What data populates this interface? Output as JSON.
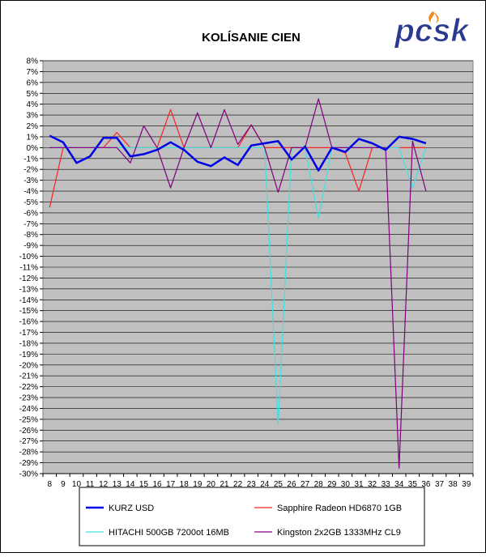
{
  "logo": {
    "text": "pcsk",
    "color": "#2b3a8f",
    "accent": "#f08a1c"
  },
  "chart_data": {
    "type": "line",
    "title": "KOLÍSANIE CIEN",
    "xlabel": "",
    "ylabel": "",
    "x": [
      8,
      9,
      10,
      11,
      12,
      13,
      14,
      15,
      16,
      17,
      18,
      19,
      20,
      21,
      22,
      23,
      24,
      25,
      26,
      27,
      28,
      29,
      30,
      31,
      32,
      33,
      34,
      35,
      36,
      37,
      38,
      39
    ],
    "ylim": [
      -30,
      8
    ],
    "y_unit": "%",
    "grid": true,
    "legend_position": "bottom",
    "plot_background": "#c0c0c0",
    "series": [
      {
        "name": "KURZ USD",
        "color": "#0000e6",
        "line_width": "thick",
        "points": [
          [
            8,
            1.1
          ],
          [
            9,
            0.5
          ],
          [
            10,
            -1.4
          ],
          [
            11,
            -0.8
          ],
          [
            12,
            0.9
          ],
          [
            13,
            0.9
          ],
          [
            14,
            -0.8
          ],
          [
            15,
            -0.6
          ],
          [
            16,
            -0.2
          ],
          [
            17,
            0.5
          ],
          [
            18,
            -0.2
          ],
          [
            19,
            -1.3
          ],
          [
            20,
            -1.7
          ],
          [
            21,
            -0.9
          ],
          [
            22,
            -1.6
          ],
          [
            23,
            0.2
          ],
          [
            24,
            0.4
          ],
          [
            25,
            0.6
          ],
          [
            26,
            -1.1
          ],
          [
            27,
            0.1
          ],
          [
            28,
            -2.1
          ],
          [
            29,
            0.0
          ],
          [
            30,
            -0.4
          ],
          [
            31,
            0.8
          ],
          [
            32,
            0.4
          ],
          [
            33,
            -0.2
          ],
          [
            34,
            1.0
          ],
          [
            35,
            0.8
          ],
          [
            36,
            0.4
          ]
        ]
      },
      {
        "name": "Sapphire Radeon HD6870 1GB",
        "color": "#ff2020",
        "line_width": "thin",
        "points": [
          [
            8,
            -5.5
          ],
          [
            9,
            0
          ],
          [
            10,
            0
          ],
          [
            11,
            0
          ],
          [
            12,
            0
          ],
          [
            13,
            1.4
          ],
          [
            14,
            0
          ],
          [
            15,
            0
          ],
          [
            16,
            0
          ],
          [
            17,
            3.5
          ],
          [
            18,
            0
          ],
          [
            19,
            0
          ],
          [
            20,
            0
          ],
          [
            21,
            0
          ],
          [
            22,
            0
          ],
          [
            23,
            2.1
          ],
          [
            24,
            0
          ],
          [
            25,
            0
          ],
          [
            26,
            0
          ],
          [
            27,
            0
          ],
          [
            28,
            0
          ],
          [
            29,
            0
          ],
          [
            30,
            -0.5
          ],
          [
            31,
            -4.0
          ],
          [
            32,
            0
          ],
          [
            33,
            0
          ],
          [
            34,
            0
          ],
          [
            35,
            0
          ],
          [
            36,
            0
          ]
        ]
      },
      {
        "name": "HITACHI 500GB 7200ot 16MB",
        "color": "#40e0e0",
        "line_width": "thin",
        "points": [
          [
            8,
            0
          ],
          [
            9,
            0
          ],
          [
            10,
            0
          ],
          [
            11,
            0
          ],
          [
            12,
            0
          ],
          [
            13,
            0
          ],
          [
            14,
            0
          ],
          [
            15,
            0
          ],
          [
            16,
            0
          ],
          [
            17,
            0
          ],
          [
            18,
            0
          ],
          [
            19,
            0
          ],
          [
            20,
            0
          ],
          [
            21,
            0
          ],
          [
            22,
            0
          ],
          [
            23,
            0
          ],
          [
            24,
            0
          ],
          [
            25,
            -25.5
          ],
          [
            26,
            0
          ],
          [
            27,
            0
          ],
          [
            28,
            -6.5
          ],
          [
            29,
            0
          ],
          [
            30,
            0
          ],
          [
            31,
            0
          ],
          [
            32,
            0
          ],
          [
            33,
            0
          ],
          [
            34,
            0
          ],
          [
            35,
            -3.7
          ],
          [
            36,
            0
          ]
        ]
      },
      {
        "name": "Kingston 2x2GB 1333MHz CL9",
        "color": "#800080",
        "line_width": "thin",
        "points": [
          [
            8,
            0
          ],
          [
            9,
            0
          ],
          [
            10,
            0
          ],
          [
            11,
            0
          ],
          [
            12,
            0
          ],
          [
            13,
            0
          ],
          [
            14,
            -1.4
          ],
          [
            15,
            2.0
          ],
          [
            16,
            0
          ],
          [
            17,
            -3.7
          ],
          [
            18,
            0
          ],
          [
            19,
            3.2
          ],
          [
            20,
            0
          ],
          [
            21,
            3.5
          ],
          [
            22,
            0.3
          ],
          [
            23,
            2.1
          ],
          [
            24,
            0
          ],
          [
            25,
            -4.1
          ],
          [
            26,
            0
          ],
          [
            27,
            0
          ],
          [
            28,
            4.5
          ],
          [
            29,
            0
          ],
          [
            30,
            0
          ],
          [
            31,
            0
          ],
          [
            32,
            0
          ],
          [
            33,
            0
          ],
          [
            34,
            -29.5
          ],
          [
            35,
            0.6
          ],
          [
            36,
            -4.0
          ]
        ]
      }
    ]
  }
}
